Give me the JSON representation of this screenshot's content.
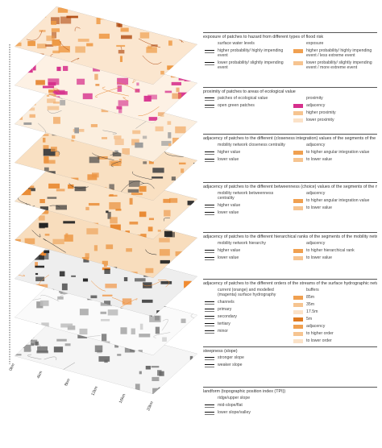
{
  "scale_labels": [
    "0km",
    "4km",
    "8km",
    "12km",
    "16km",
    "20km"
  ],
  "legend": [
    {
      "title": "exposure of patches to hazard from different types of flood risk",
      "left": [
        "surface water levels",
        "higher probability/ highly impending event",
        "lower probability/ slightly impending event"
      ],
      "right": [
        "exposure",
        "higher probability/ highly impending event / less extreme event",
        "lower probability/ slightly impending event / more extreme event"
      ]
    },
    {
      "title": "proximity of patches to areas of ecological value",
      "left": [
        "patches of ecological value",
        "open green patches"
      ],
      "right": [
        "proximity",
        "adjacency",
        "higher proximity",
        "lower proximity"
      ]
    },
    {
      "title": "adjacency of patches to the different (closeness integration) values of the segments of the mobility network",
      "left": [
        "mobility network closeness centrality",
        "higher value",
        "lower value"
      ],
      "right": [
        "adjacency",
        "to higher angular integration value",
        "to lower value"
      ]
    },
    {
      "title": "adjacency of patches to the different betweenness (choice) values of the segments of the mobility network",
      "left": [
        "mobility network betweenness centrality",
        "higher value",
        "lower value"
      ],
      "right": [
        "adjacency",
        "to higher angular integration value",
        "to lower value"
      ]
    },
    {
      "title": "adjacency of patches to the different hierarchical ranks of the segments of the mobility network",
      "left": [
        "mobility network hierarchy",
        "higher value",
        "lower value"
      ],
      "right": [
        "adjacency",
        "to higher hierarchical rank",
        "to lower value"
      ]
    },
    {
      "title": "adjacency of patches to the different orders of the streams of the surface hydrographic network",
      "left": [
        "current (orange) and modelled (magenta) surface hydrography",
        "channels",
        "primary",
        "secondary",
        "tertiary",
        "minor"
      ],
      "right": [
        "buffers",
        "85m",
        "35m",
        "17.5m",
        "5m",
        "adjacency",
        "to higher order",
        "to lower order"
      ]
    },
    {
      "title": "steepness (slope)",
      "left": [
        "stronger slope",
        "weaker slope"
      ],
      "right": []
    },
    {
      "title": "landform (topographic position index (TPI))",
      "left": [
        "ridge/upper slope",
        "mid-slope/flat",
        "lower slope/valley"
      ],
      "right": []
    }
  ]
}
